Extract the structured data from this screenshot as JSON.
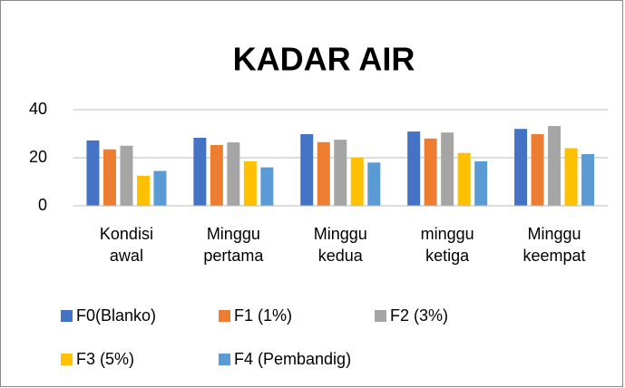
{
  "chart_data": {
    "type": "bar",
    "title": "KADAR AIR",
    "categories": [
      "Kondisi awal",
      "Minggu pertama",
      "Minggu kedua",
      "minggu ketiga",
      "Minggu keempat"
    ],
    "series": [
      {
        "name": "F0(Blanko)",
        "color": "#4472c4",
        "values": [
          27.2,
          28.3,
          29.8,
          30.9,
          32
        ]
      },
      {
        "name": "F1 (1%)",
        "color": "#ed7d31",
        "values": [
          23.5,
          25.3,
          26.5,
          28,
          29.8
        ]
      },
      {
        "name": "F2 (3%)",
        "color": "#a5a5a5",
        "values": [
          25,
          26.4,
          27.5,
          30.5,
          33.2
        ]
      },
      {
        "name": "F3 (5%)",
        "color": "#ffc000",
        "values": [
          12.5,
          18.5,
          20,
          22,
          24
        ]
      },
      {
        "name": "F4 (Pembandig)",
        "color": "#5b9bd5",
        "values": [
          14.5,
          16,
          18,
          18.5,
          21.5
        ]
      }
    ],
    "ylim": [
      0,
      40
    ],
    "yticks": [
      0,
      20,
      40
    ],
    "grid": true,
    "legend": "bottom"
  }
}
